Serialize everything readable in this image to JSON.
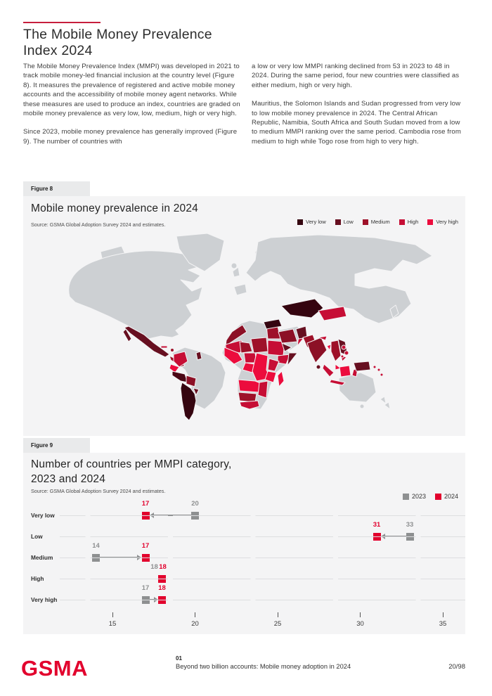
{
  "page": {
    "header": {
      "title_line1": "The Mobile Money Prevalence",
      "title_line2": "Index 2024"
    },
    "columns": {
      "left": [
        "The Mobile Money Prevalence Index (MMPI) was developed in 2021 to track mobile money-led financial inclusion at the country level (Figure 8). It measures the prevalence of registered and active mobile money accounts and the accessibility of mobile money agent networks. While these measures are used to produce an index, countries are graded on mobile money prevalence as very low, low, medium, high or very high.",
        "Since 2023, mobile money prevalence has generally improved (Figure 9). The number of countries with"
      ],
      "right": [
        "a low or very low MMPI ranking declined from 53 in 2023 to 48 in 2024. During the same period, four new countries were classified as either medium, high or very high.",
        "Mauritius, the Solomon Islands and Sudan progressed from very low to low mobile money prevalence in 2024. The Central African Republic, Namibia, South Africa and South Sudan moved from a low to medium MMPI ranking over the same period. Cambodia rose from medium to high while Togo rose from high to very high."
      ]
    },
    "footer": {
      "logo": "GSMA",
      "chapter": "01",
      "report": "Beyond two billion accounts: Mobile money adoption in 2024",
      "page": "20/98"
    }
  },
  "figure8": {
    "tab": "Figure 8",
    "title": "Mobile money prevalence in 2024",
    "source": "Source: GSMA Global Adoption Survey 2024 and estimates.",
    "legend": [
      {
        "label": "Very low",
        "color": "#350510"
      },
      {
        "label": "Low",
        "color": "#670f20"
      },
      {
        "label": "Medium",
        "color": "#9e1129"
      },
      {
        "label": "High",
        "color": "#c60e35"
      },
      {
        "label": "Very high",
        "color": "#ec0c3d"
      }
    ]
  },
  "figure9": {
    "tab": "Figure 9",
    "title_line1": "Number of countries per MMPI category,",
    "title_line2": "2023 and 2024",
    "source": "Source: GSMA Global Adoption Survey 2024 and estimates.",
    "legend": [
      {
        "label": "2023",
        "color": "#8e9091"
      },
      {
        "label": "2024",
        "color": "#e2002d"
      }
    ]
  },
  "chart_data": [
    {
      "type": "heatmap",
      "subtype": "world-choropleth",
      "title": "Mobile money prevalence in 2024",
      "source": "Source: GSMA Global Adoption Survey 2024 and estimates.",
      "legend_categories": [
        "Very low",
        "Low",
        "Medium",
        "High",
        "Very high"
      ],
      "palette": {
        "Very low": "#350510",
        "Low": "#670f20",
        "Medium": "#9e1129",
        "High": "#c60e35",
        "Very high": "#ec0c3d",
        "No data": "#cdd0d3"
      },
      "regions_by_category_approximate": {
        "Very low": [
          "Kazakhstan",
          "Turkey",
          "Argentina",
          "Chile"
        ],
        "Low": [
          "Mexico",
          "Peru",
          "Paraguay",
          "Afghanistan",
          "Somalia",
          "Vietnam",
          "Papua New Guinea",
          "Yemen"
        ],
        "Medium": [
          "Morocco",
          "Iran",
          "Pakistan",
          "India",
          "Bolivia",
          "Niger",
          "Chad",
          "Egypt",
          "Namibia",
          "Botswana",
          "Myanmar",
          "Thailand"
        ],
        "High": [
          "Colombia",
          "Mongolia",
          "Sudan",
          "Nigeria",
          "Senegal",
          "Kenya",
          "Zimbabwe",
          "South Africa",
          "Cambodia",
          "Philippines",
          "Indonesia"
        ],
        "Very high": [
          "Ecuador",
          "Ghana",
          "Côte d'Ivoire",
          "Cameroon",
          "DR Congo",
          "Tanzania",
          "Zambia",
          "Madagascar",
          "Bangladesh",
          "Malaysia"
        ]
      }
    },
    {
      "type": "scatter",
      "subtype": "dumbbell",
      "title": "Number of countries per MMPI category, 2023 and 2024",
      "source": "Source: GSMA Global Adoption Survey 2024 and estimates.",
      "categories": [
        "Very low",
        "Low",
        "Medium",
        "High",
        "Very high"
      ],
      "series": [
        {
          "name": "2023",
          "color": "#8e9091",
          "values": [
            20,
            33,
            14,
            18,
            17
          ]
        },
        {
          "name": "2024",
          "color": "#e2002d",
          "values": [
            17,
            31,
            17,
            18,
            18
          ]
        }
      ],
      "xlim": [
        13.5,
        36
      ],
      "xticks": [
        15,
        20,
        25,
        30,
        35
      ],
      "grid": true,
      "legend_position": "top-right"
    }
  ]
}
